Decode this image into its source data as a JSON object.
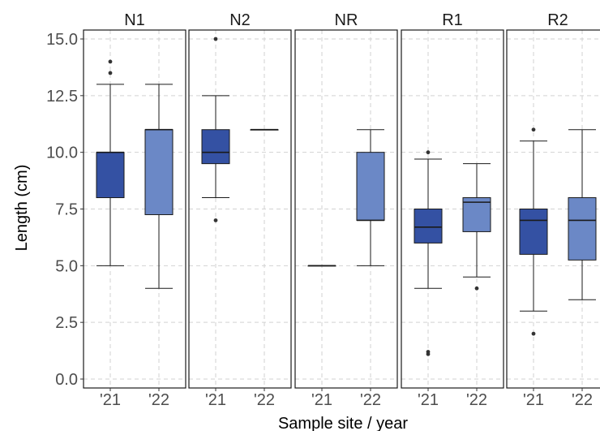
{
  "chart_data": {
    "type": "boxplot",
    "facet_by": "site",
    "facets": [
      "N1",
      "N2",
      "NR",
      "R1",
      "R2"
    ],
    "categories": [
      "'21",
      "'22"
    ],
    "xlabel": "Sample site / year",
    "ylabel": "Length (cm)",
    "ylim": [
      0,
      15.4
    ],
    "yticks": [
      "0.0",
      "2.5",
      "5.0",
      "7.5",
      "10.0",
      "12.5",
      "15.0"
    ],
    "grid": true,
    "colors": {
      "'21": "#3451a3",
      "'22": "#6b88c6"
    },
    "boxes": [
      {
        "facet": "N1",
        "year": "'21",
        "whisker_low": 5.0,
        "q1": 8.0,
        "median": 10.0,
        "q3": 10.0,
        "whisker_high": 13.0,
        "outliers": [
          13.5,
          14.0
        ]
      },
      {
        "facet": "N1",
        "year": "'22",
        "whisker_low": 4.0,
        "q1": 7.25,
        "median": 11.0,
        "q3": 11.0,
        "whisker_high": 13.0,
        "outliers": []
      },
      {
        "facet": "N2",
        "year": "'21",
        "whisker_low": 8.0,
        "q1": 9.5,
        "median": 10.0,
        "q3": 11.0,
        "whisker_high": 12.5,
        "outliers": [
          7.0,
          15.0
        ]
      },
      {
        "facet": "N2",
        "year": "'22",
        "whisker_low": 11.0,
        "q1": 11.0,
        "median": 11.0,
        "q3": 11.0,
        "whisker_high": 11.0,
        "outliers": []
      },
      {
        "facet": "NR",
        "year": "'21",
        "whisker_low": 5.0,
        "q1": 5.0,
        "median": 5.0,
        "q3": 5.0,
        "whisker_high": 5.0,
        "outliers": []
      },
      {
        "facet": "NR",
        "year": "'22",
        "whisker_low": 5.0,
        "q1": 7.0,
        "median": 7.0,
        "q3": 10.0,
        "whisker_high": 11.0,
        "outliers": []
      },
      {
        "facet": "R1",
        "year": "'21",
        "whisker_low": 4.0,
        "q1": 6.0,
        "median": 6.7,
        "q3": 7.5,
        "whisker_high": 9.7,
        "outliers": [
          1.1,
          1.2,
          10.0
        ]
      },
      {
        "facet": "R1",
        "year": "'22",
        "whisker_low": 4.5,
        "q1": 6.5,
        "median": 7.8,
        "q3": 8.0,
        "whisker_high": 9.5,
        "outliers": [
          4.0
        ]
      },
      {
        "facet": "R2",
        "year": "'21",
        "whisker_low": 3.0,
        "q1": 5.5,
        "median": 7.0,
        "q3": 7.5,
        "whisker_high": 10.5,
        "outliers": [
          2.0,
          11.0
        ]
      },
      {
        "facet": "R2",
        "year": "'22",
        "whisker_low": 3.5,
        "q1": 5.25,
        "median": 7.0,
        "q3": 8.0,
        "whisker_high": 11.0,
        "outliers": []
      }
    ]
  }
}
